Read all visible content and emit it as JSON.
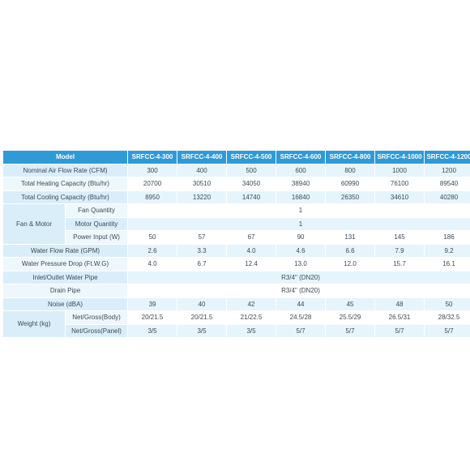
{
  "header": {
    "model_label": "Model",
    "models": [
      "SRFCC-4-300",
      "SRFCC-4-400",
      "SRFCC-4-500",
      "SRFCC-4-600",
      "SRFCC-4-800",
      "SRFCC-4-1000",
      "SRFCC-4-1200"
    ]
  },
  "rows": {
    "airflow": {
      "label": "Nominal Air Flow Rate (CFM)",
      "values": [
        "300",
        "400",
        "500",
        "600",
        "800",
        "1000",
        "1200"
      ]
    },
    "heating": {
      "label": "Total Heating Capacity (Btu/hr)",
      "values": [
        "20700",
        "30510",
        "34050",
        "38940",
        "60990",
        "76100",
        "89540"
      ]
    },
    "cooling": {
      "label": "Total Cooling Capacity (Btu/hr)",
      "values": [
        "8950",
        "13220",
        "14740",
        "16840",
        "26350",
        "34610",
        "40280"
      ]
    },
    "fan_motor": {
      "group_label": "Fan & Motor",
      "fan_quantity": {
        "label": "Fan Quantity",
        "value": "1"
      },
      "motor_quantity": {
        "label": "Motor Quantity",
        "value": "1"
      },
      "power_input": {
        "label": "Power Input (W)",
        "values": [
          "50",
          "57",
          "67",
          "90",
          "131",
          "145",
          "186"
        ]
      }
    },
    "water_flow": {
      "label": "Water Flow Rate (GPM)",
      "values": [
        "2.6",
        "3.3",
        "4.0",
        "4.6",
        "6.6",
        "7.9",
        "9.2"
      ]
    },
    "pressure_drop": {
      "label": "Water Pressure Drop (Ft.W.G)",
      "values": [
        "4.0",
        "6.7",
        "12.4",
        "13.0",
        "12.0",
        "15.7",
        "16.1"
      ]
    },
    "inlet_outlet": {
      "label": "Inlet/Outlet Water Pipe",
      "value": "R3/4\" (DN20)"
    },
    "drain_pipe": {
      "label": "Drain Pipe",
      "value": "R3/4\" (DN20)"
    },
    "noise": {
      "label": "Noise (dBA)",
      "values": [
        "39",
        "40",
        "42",
        "44",
        "45",
        "48",
        "50"
      ]
    },
    "weight": {
      "group_label": "Weight (kg)",
      "body": {
        "label": "Net/Gross(Body)",
        "values": [
          "20/21.5",
          "20/21.5",
          "21/22.5",
          "24.5/28",
          "25.5/29",
          "26.5/31",
          "28/32.5"
        ]
      },
      "panel": {
        "label": "Net/Gross(Panel)",
        "values": [
          "3/5",
          "3/5",
          "3/5",
          "5/7",
          "5/7",
          "5/7",
          "5/7"
        ]
      }
    }
  },
  "colors": {
    "header_bg": "#2f9ad8",
    "row_tint": "#e6f4fb",
    "text": "#3c4a55"
  }
}
